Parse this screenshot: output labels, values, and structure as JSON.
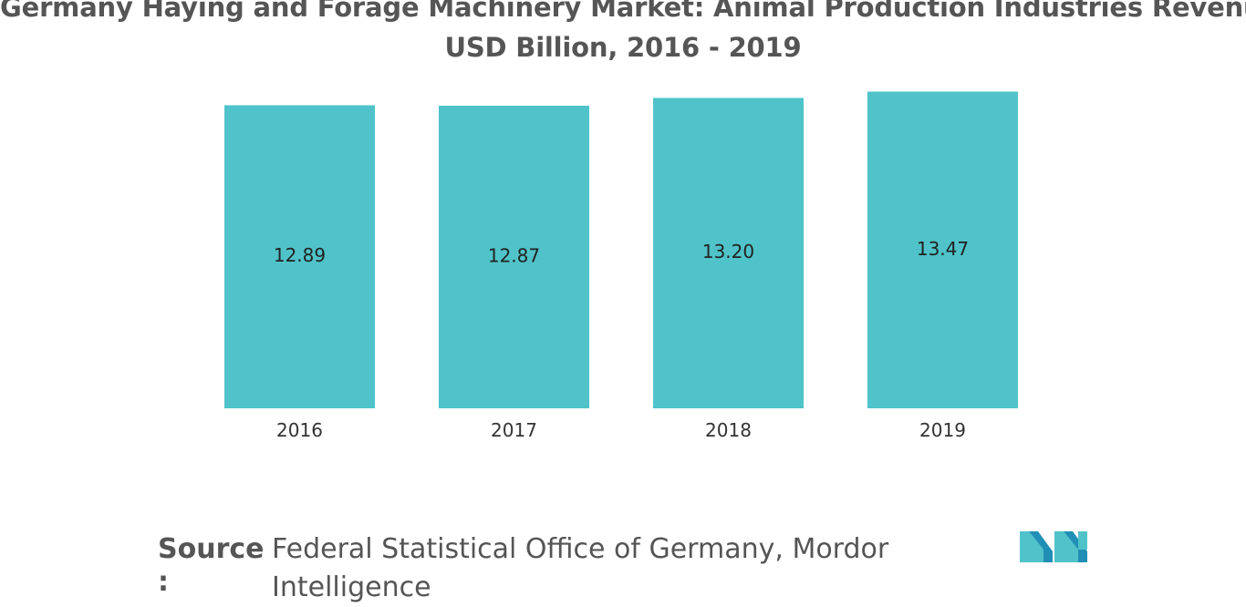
{
  "chart_data": {
    "type": "bar",
    "title_lines": [
      "Germany Haying and Forage Machinery Market: Animal Production Industries Revenue,",
      "USD Billion, 2016 - 2019"
    ],
    "categories": [
      "2016",
      "2017",
      "2018",
      "2019"
    ],
    "values": [
      12.89,
      12.87,
      13.2,
      13.47
    ],
    "value_labels": [
      "12.89",
      "12.87",
      "13.20",
      "13.47"
    ],
    "xlabel": "",
    "ylabel": "",
    "grid": false,
    "legend": "none",
    "bar_color": "#4fc3c9"
  },
  "source": {
    "label": "Source",
    "colon": ":",
    "text": "Federal Statistical Office of Germany, Mordor Intelligence"
  },
  "logo": {
    "icon": "mordor-intelligence-logo-icon",
    "colors": [
      "#1f8fb5",
      "#4fc3c9"
    ]
  }
}
